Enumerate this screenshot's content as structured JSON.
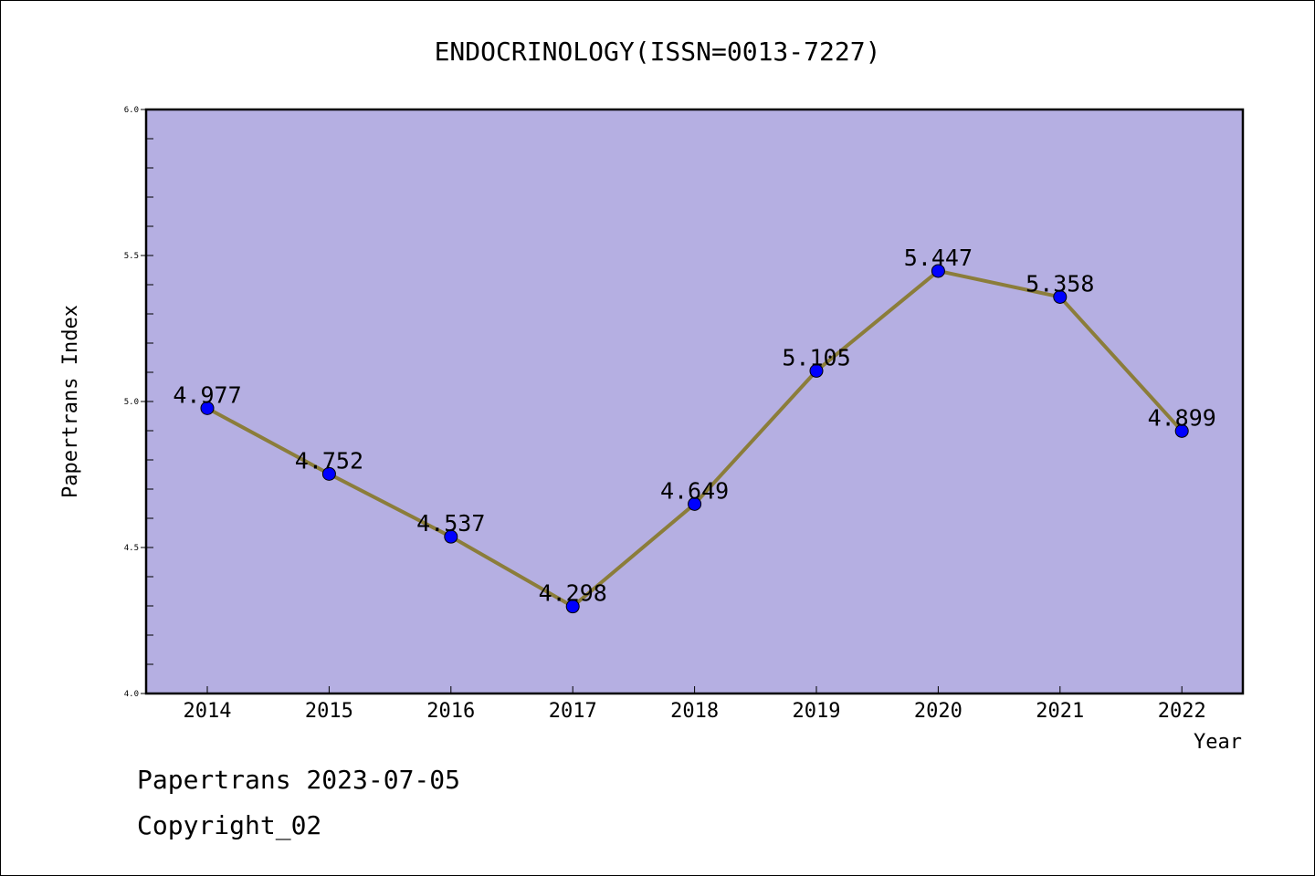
{
  "chart_data": {
    "type": "line",
    "title": "ENDOCRINOLOGY(ISSN=0013-7227)",
    "xlabel": "Year",
    "ylabel": "Papertrans Index",
    "x": [
      "2014",
      "2015",
      "2016",
      "2017",
      "2018",
      "2019",
      "2020",
      "2021",
      "2022"
    ],
    "series": [
      {
        "values": [
          4.977,
          4.752,
          4.537,
          4.298,
          4.649,
          5.105,
          5.447,
          5.358,
          4.899
        ],
        "labels": [
          "4.977",
          "4.752",
          "4.537",
          "4.298",
          "4.649",
          "5.105",
          "5.447",
          "5.358",
          "4.899"
        ]
      }
    ],
    "ylim": [
      4.0,
      6.0
    ],
    "yticks": [
      "4.0",
      "4.5",
      "5.0",
      "5.5",
      "6.0"
    ],
    "grid": false,
    "colors": {
      "plot_background": "#b5afe2",
      "line": "#8b7d3a",
      "marker": "#0000ff"
    }
  },
  "footer": {
    "line1": "Papertrans 2023-07-05",
    "line2": "Copyright_02"
  }
}
